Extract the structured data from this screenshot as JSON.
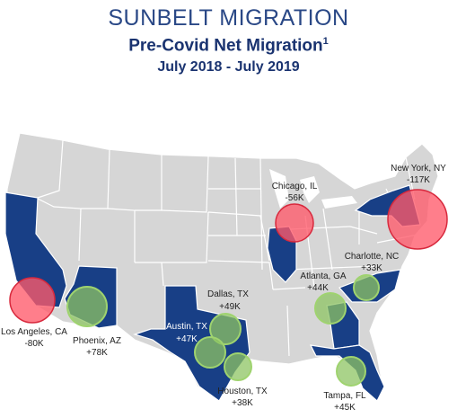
{
  "header": {
    "title": "SUNBELT MIGRATION",
    "subtitle": "Pre-Covid Net Migration",
    "footnote_mark": "1",
    "period": "July 2018 - July 2019"
  },
  "colors": {
    "base_state": "#d6d6d6",
    "highlight_state": "#183f86",
    "loss_bubble": "#ff5a6a",
    "gain_bubble": "#9fd36f"
  },
  "cities": [
    {
      "id": "new-york",
      "name": "New York, NY",
      "value": "-117K",
      "net_k": -117
    },
    {
      "id": "chicago",
      "name": "Chicago, IL",
      "value": "-56K",
      "net_k": -56
    },
    {
      "id": "charlotte",
      "name": "Charlotte, NC",
      "value": "+33K",
      "net_k": 33
    },
    {
      "id": "atlanta",
      "name": "Atlanta, GA",
      "value": "+44K",
      "net_k": 44
    },
    {
      "id": "dallas",
      "name": "Dallas, TX",
      "value": "+49K",
      "net_k": 49
    },
    {
      "id": "austin",
      "name": "Austin, TX",
      "value": "+47K",
      "net_k": 47
    },
    {
      "id": "houston",
      "name": "Houston, TX",
      "value": "+38K",
      "net_k": 38
    },
    {
      "id": "tampa",
      "name": "Tampa, FL",
      "value": "+45K",
      "net_k": 45
    },
    {
      "id": "phoenix",
      "name": "Phoenix, AZ",
      "value": "+78K",
      "net_k": 78
    },
    {
      "id": "los-angeles",
      "name": "Los Angeles, CA",
      "value": "-80K",
      "net_k": -80
    }
  ]
}
